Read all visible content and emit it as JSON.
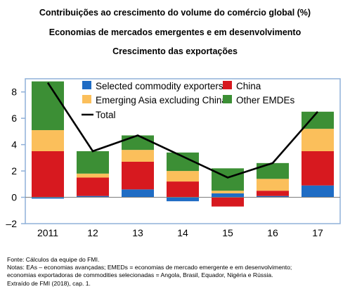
{
  "titles": {
    "line1": "Contribuições ao crescimento do volume do comércio global (%)",
    "line2": "Economias de mercados emergentes e em desenvolvimento",
    "line3": "Crescimento das exportações"
  },
  "notes": {
    "source": "Fonte: Cálculos da equipe do FMI.",
    "notes_a": "Notas: EAs – economias avançadas; EMEDs = economias de mercado emergente e em desenvolvimento;",
    "notes_b": "economias exportadoras de commodities selecionadas = Angola, Brasil, Equador, Nigéria e Rússia.",
    "extract": "Extraído de FMI (2018), cap. 1."
  },
  "colors": {
    "selected_commodity_exporters": "#1f6cc4",
    "china": "#d7191f",
    "emerging_asia_excluding_china": "#fbbf5b",
    "other_emdes": "#3c8f35",
    "total": "#000000",
    "frame": "#8fb0d8",
    "gridline": "#7d7d7d"
  },
  "chart_data": {
    "type": "bar",
    "stacked": true,
    "categories": [
      "2011",
      "12",
      "13",
      "14",
      "15",
      "16",
      "17"
    ],
    "ylim": [
      -2,
      9
    ],
    "yticks": [
      -2,
      0,
      2,
      4,
      6,
      8
    ],
    "ytick_labels": [
      "–2",
      "0",
      "2",
      "4",
      "6",
      "8"
    ],
    "grid": false,
    "legend_position": "top",
    "series": [
      {
        "name": "Selected commodity exporters",
        "color_key": "selected_commodity_exporters",
        "values": [
          -0.1,
          0.1,
          0.6,
          -0.3,
          0.3,
          0.1,
          0.9
        ]
      },
      {
        "name": "China",
        "color_key": "china",
        "values": [
          3.5,
          1.4,
          2.1,
          1.2,
          -0.7,
          0.4,
          2.6
        ]
      },
      {
        "name": "Emerging Asia excluding China",
        "color_key": "emerging_asia_excluding_china",
        "values": [
          1.6,
          0.3,
          0.9,
          0.8,
          0.2,
          0.9,
          1.7
        ]
      },
      {
        "name": "Other EMDEs",
        "color_key": "other_emdes",
        "values": [
          3.7,
          1.7,
          1.1,
          1.4,
          1.7,
          1.2,
          1.3
        ]
      }
    ],
    "line_series": {
      "name": "Total",
      "color_key": "total",
      "values": [
        8.7,
        3.5,
        4.7,
        3.1,
        1.5,
        2.6,
        6.5
      ]
    }
  }
}
